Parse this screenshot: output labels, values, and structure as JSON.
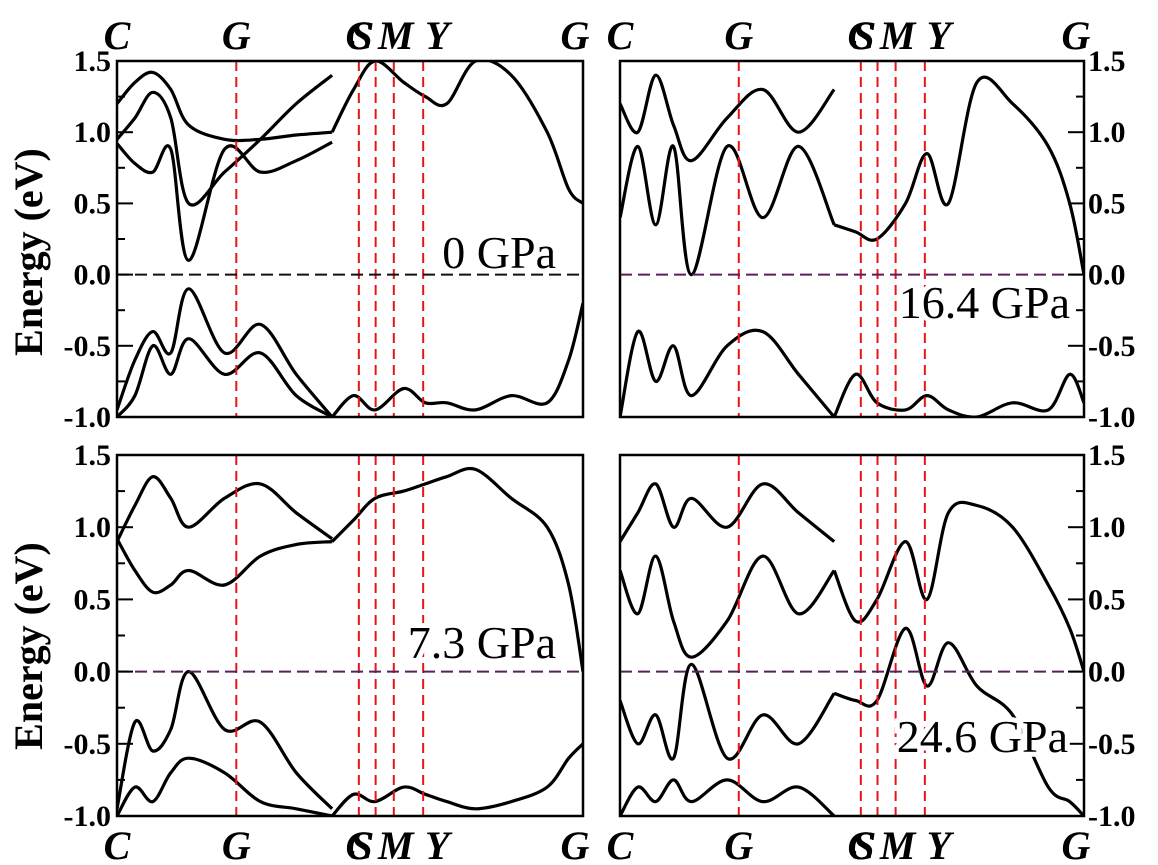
{
  "figure": {
    "ylabel": "Energy (eV)"
  },
  "chart_data": [
    {
      "type": "line",
      "annotation": "0 GPa",
      "ylim": [
        -1.0,
        1.5
      ],
      "yticks": [
        "1.5",
        "1.0",
        "0.5",
        "0.0",
        "-0.5",
        "-1.0"
      ],
      "kpath": [
        "C",
        "G",
        "C",
        "S",
        "M",
        "Y",
        "G"
      ],
      "fermi_level": 0.0,
      "series": [
        {
          "x": [
            0,
            0.25,
            0.5,
            0.75,
            1,
            1.5,
            2,
            2.5,
            3
          ],
          "values": [
            1.2,
            1.35,
            1.42,
            1.3,
            1.05,
            0.95,
            0.95,
            0.98,
            1.0
          ]
        },
        {
          "x": [
            0,
            0.25,
            0.5,
            0.75,
            1,
            1.5,
            2,
            2.5,
            3
          ],
          "values": [
            0.95,
            1.1,
            1.28,
            1.1,
            0.5,
            0.72,
            0.95,
            1.2,
            1.4
          ]
        },
        {
          "x": [
            0,
            0.25,
            0.5,
            0.75,
            1,
            1.5,
            2,
            2.5,
            3
          ],
          "values": [
            0.92,
            0.78,
            0.72,
            0.88,
            0.1,
            0.88,
            0.72,
            0.8,
            0.93
          ]
        },
        {
          "x": [
            0,
            0.25,
            0.5,
            0.75,
            1,
            1.5,
            2,
            2.5,
            3
          ],
          "values": [
            -0.95,
            -0.6,
            -0.4,
            -0.55,
            -0.1,
            -0.55,
            -0.35,
            -0.7,
            -1.0
          ]
        },
        {
          "x": [
            0,
            0.25,
            0.5,
            0.75,
            1,
            1.5,
            2,
            2.5,
            3
          ],
          "values": [
            -1.0,
            -0.85,
            -0.5,
            -0.7,
            -0.45,
            -0.7,
            -0.55,
            -0.85,
            -1.0
          ]
        },
        {
          "x": [
            3,
            3.3,
            3.6,
            4,
            4.3,
            4.6,
            5,
            5.5,
            6,
            6.3,
            6.5
          ],
          "values": [
            -1.0,
            -0.85,
            -0.95,
            -0.8,
            -0.9,
            -0.9,
            -0.95,
            -0.85,
            -0.9,
            -0.6,
            -0.2
          ]
        },
        {
          "x": [
            3,
            3.3,
            3.6,
            4,
            4.3,
            4.6,
            5,
            5.5,
            6,
            6.3,
            6.5
          ],
          "values": [
            1.0,
            1.3,
            1.5,
            1.35,
            1.25,
            1.2,
            1.5,
            1.4,
            1.0,
            0.6,
            0.5
          ]
        }
      ]
    },
    {
      "type": "line",
      "annotation": "16.4 GPa",
      "ylim": [
        -1.0,
        1.5
      ],
      "yticks": [
        "1.5",
        "1.0",
        "0.5",
        "0.0",
        "-0.5",
        "-1.0"
      ],
      "kpath": [
        "C",
        "G",
        "C",
        "S",
        "M",
        "Y",
        "G"
      ],
      "fermi_level": 0.0,
      "series": [
        {
          "x": [
            0,
            0.25,
            0.5,
            0.75,
            1,
            1.5,
            2,
            2.5,
            3
          ],
          "values": [
            0.4,
            0.9,
            0.35,
            0.9,
            0.0,
            0.9,
            0.4,
            0.9,
            0.35
          ]
        },
        {
          "x": [
            0,
            0.25,
            0.5,
            0.75,
            1,
            1.5,
            2,
            2.5,
            3
          ],
          "values": [
            1.2,
            1.0,
            1.4,
            1.05,
            0.8,
            1.1,
            1.3,
            1.0,
            1.3
          ]
        },
        {
          "x": [
            0,
            0.25,
            0.5,
            0.75,
            1,
            1.5,
            2,
            2.5,
            3
          ],
          "values": [
            -1.0,
            -0.4,
            -0.75,
            -0.5,
            -0.85,
            -0.5,
            -0.4,
            -0.7,
            -1.0
          ]
        },
        {
          "x": [
            3,
            3.3,
            3.6,
            4,
            4.3,
            4.6,
            5,
            5.5,
            6,
            6.3,
            6.5
          ],
          "values": [
            0.35,
            0.3,
            0.25,
            0.5,
            0.85,
            0.5,
            1.35,
            1.2,
            0.9,
            0.5,
            0.0
          ]
        },
        {
          "x": [
            3,
            3.3,
            3.6,
            4,
            4.3,
            4.6,
            5,
            5.5,
            6,
            6.3,
            6.5
          ],
          "values": [
            -1.0,
            -0.7,
            -0.9,
            -0.95,
            -0.85,
            -0.95,
            -1.0,
            -0.9,
            -0.95,
            -0.7,
            -0.9
          ]
        }
      ]
    },
    {
      "type": "line",
      "annotation": "7.3 GPa",
      "ylim": [
        -1.0,
        1.5
      ],
      "yticks": [
        "1.5",
        "1.0",
        "0.5",
        "0.0",
        "-0.5",
        "-1.0"
      ],
      "kpath": [
        "C",
        "G",
        "C",
        "S",
        "M",
        "Y",
        "G"
      ],
      "fermi_level": 0.0,
      "series": [
        {
          "x": [
            0,
            0.25,
            0.5,
            0.75,
            1,
            1.5,
            2,
            2.5,
            3
          ],
          "values": [
            0.9,
            1.15,
            1.35,
            1.2,
            1.0,
            1.2,
            1.3,
            1.1,
            0.92
          ]
        },
        {
          "x": [
            0,
            0.25,
            0.5,
            0.75,
            1,
            1.5,
            2,
            2.5,
            3
          ],
          "values": [
            0.92,
            0.7,
            0.55,
            0.6,
            0.7,
            0.6,
            0.8,
            0.88,
            0.9
          ]
        },
        {
          "x": [
            0,
            0.25,
            0.5,
            0.75,
            1,
            1.5,
            2,
            2.5,
            3
          ],
          "values": [
            -0.95,
            -0.35,
            -0.55,
            -0.4,
            0.0,
            -0.4,
            -0.35,
            -0.7,
            -0.95
          ]
        },
        {
          "x": [
            0,
            0.25,
            0.5,
            0.75,
            1,
            1.5,
            2,
            2.5,
            3
          ],
          "values": [
            -1.0,
            -0.8,
            -0.9,
            -0.7,
            -0.6,
            -0.7,
            -0.9,
            -0.95,
            -1.0
          ]
        },
        {
          "x": [
            3,
            3.3,
            3.6,
            4,
            4.3,
            4.6,
            5,
            5.5,
            6,
            6.3,
            6.5
          ],
          "values": [
            0.9,
            1.05,
            1.2,
            1.25,
            1.3,
            1.35,
            1.4,
            1.2,
            1.0,
            0.6,
            0.0
          ]
        },
        {
          "x": [
            3,
            3.3,
            3.6,
            4,
            4.3,
            4.6,
            5,
            5.5,
            6,
            6.3,
            6.5
          ],
          "values": [
            -1.0,
            -0.85,
            -0.9,
            -0.8,
            -0.85,
            -0.9,
            -0.95,
            -0.9,
            -0.8,
            -0.6,
            -0.5
          ]
        }
      ]
    },
    {
      "type": "line",
      "annotation": "24.6 GPa",
      "ylim": [
        -1.0,
        1.5
      ],
      "yticks": [
        "1.5",
        "1.0",
        "0.5",
        "0.0",
        "-0.5",
        "-1.0"
      ],
      "kpath": [
        "C",
        "G",
        "C",
        "S",
        "M",
        "Y",
        "G"
      ],
      "fermi_level": 0.0,
      "series": [
        {
          "x": [
            0,
            0.25,
            0.5,
            0.75,
            1,
            1.5,
            2,
            2.5,
            3
          ],
          "values": [
            0.7,
            0.4,
            0.8,
            0.35,
            0.1,
            0.35,
            0.8,
            0.4,
            0.7
          ]
        },
        {
          "x": [
            0,
            0.25,
            0.5,
            0.75,
            1,
            1.5,
            2,
            2.5,
            3
          ],
          "values": [
            0.9,
            1.1,
            1.3,
            1.0,
            1.2,
            1.0,
            1.3,
            1.1,
            0.9
          ]
        },
        {
          "x": [
            0,
            0.25,
            0.5,
            0.75,
            1,
            1.5,
            2,
            2.5,
            3
          ],
          "values": [
            -0.2,
            -0.5,
            -0.3,
            -0.6,
            0.05,
            -0.6,
            -0.3,
            -0.5,
            -0.15
          ]
        },
        {
          "x": [
            0,
            0.25,
            0.5,
            0.75,
            1,
            1.5,
            2,
            2.5,
            3
          ],
          "values": [
            -1.0,
            -0.8,
            -0.9,
            -0.75,
            -0.9,
            -0.75,
            -0.9,
            -0.8,
            -1.0
          ]
        },
        {
          "x": [
            3,
            3.3,
            3.6,
            4,
            4.3,
            4.6,
            5,
            5.5,
            6,
            6.3,
            6.5
          ],
          "values": [
            0.7,
            0.35,
            0.5,
            0.9,
            0.5,
            1.1,
            1.15,
            1.0,
            0.6,
            0.3,
            0.0
          ]
        },
        {
          "x": [
            3,
            3.3,
            3.6,
            4,
            4.3,
            4.6,
            5,
            5.5,
            6,
            6.3,
            6.5
          ],
          "values": [
            -0.15,
            -0.2,
            -0.2,
            0.3,
            -0.1,
            0.2,
            -0.1,
            -0.3,
            -0.8,
            -0.9,
            -1.0
          ]
        }
      ]
    }
  ]
}
